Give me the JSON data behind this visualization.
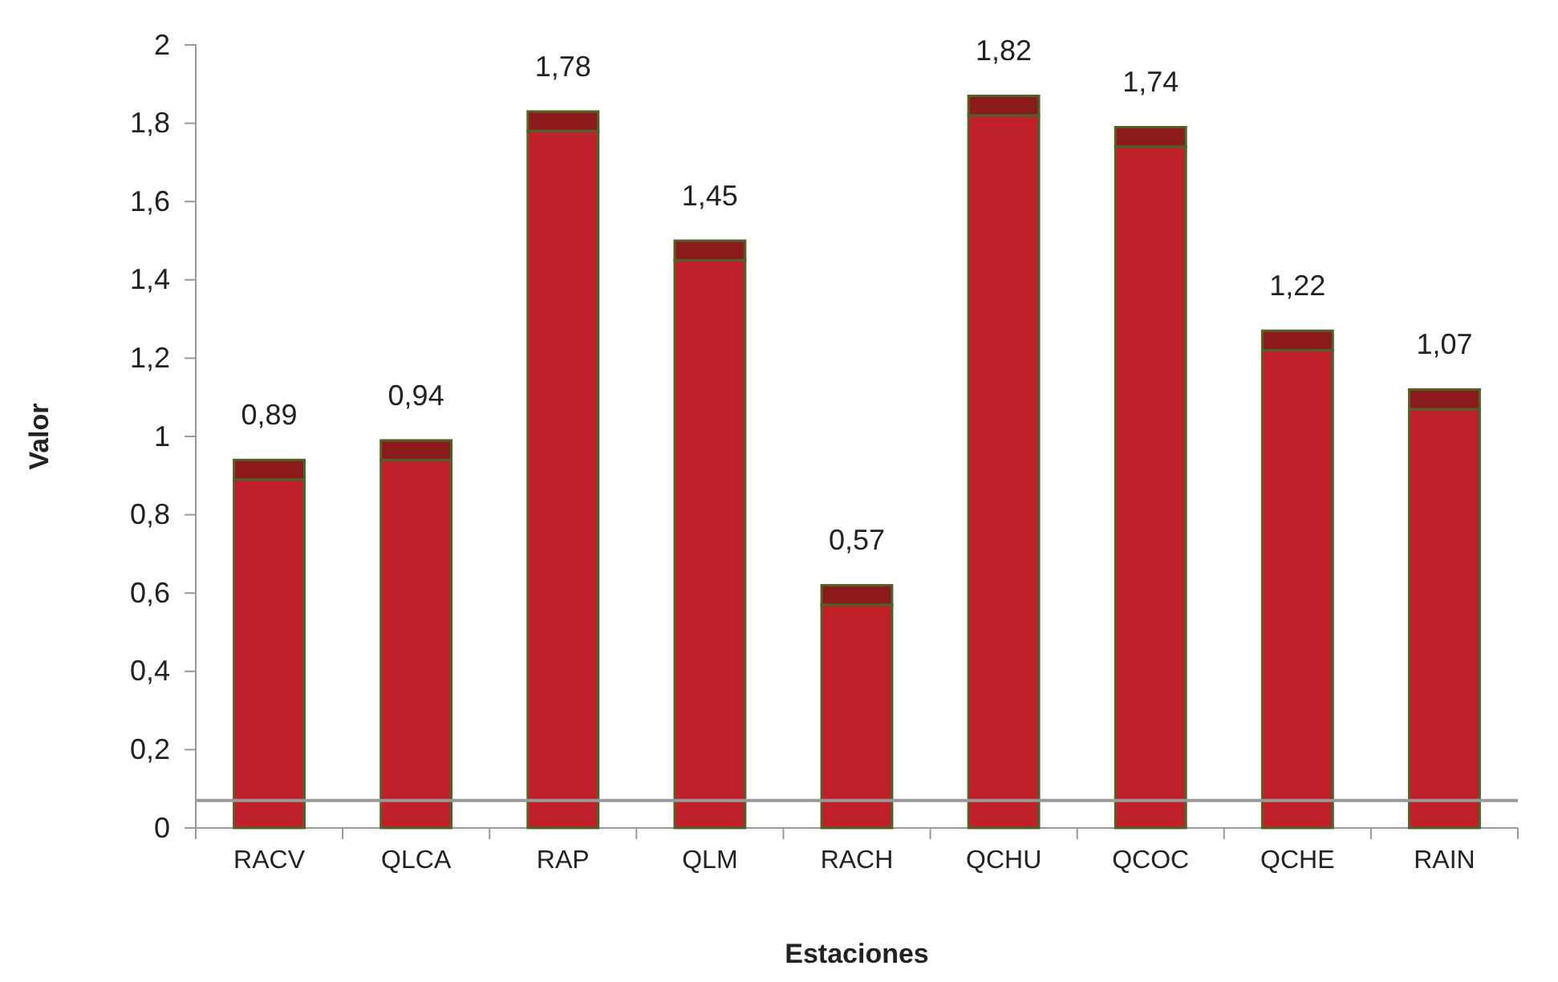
{
  "chart_data": {
    "type": "bar",
    "xlabel": "Estaciones",
    "ylabel": "Valor",
    "categories": [
      "RACV",
      "QLCA",
      "RAP",
      "QLM",
      "RACH",
      "QCHU",
      "QCOC",
      "QCHE",
      "RAIN"
    ],
    "stacked": true,
    "series": [
      {
        "color": "#c0202a",
        "values": [
          0.89,
          0.94,
          1.78,
          1.45,
          0.57,
          1.82,
          1.74,
          1.22,
          1.07
        ],
        "value_labels": [
          "0,89",
          "0,94",
          "1,78",
          "1,45",
          "0,57",
          "1,82",
          "1,74",
          "1,22",
          "1,07"
        ]
      },
      {
        "color": "#8b1a1c",
        "values": [
          0.05,
          0.05,
          0.05,
          0.05,
          0.05,
          0.05,
          0.05,
          0.05,
          0.05
        ]
      }
    ],
    "ylim": [
      0,
      2
    ],
    "yticks": [
      0,
      {
        "value": 0.2,
        "label": "0,2"
      },
      {
        "value": 0.4,
        "label": "0,4"
      },
      {
        "value": 0.6,
        "label": "0,6"
      },
      {
        "value": 0.8,
        "label": "0,8"
      },
      1,
      {
        "value": 1.2,
        "label": "1,2"
      },
      {
        "value": 1.4,
        "label": "1,4"
      },
      {
        "value": 1.6,
        "label": "1,6"
      },
      {
        "value": 1.8,
        "label": "1,8"
      },
      2
    ],
    "ref_lines": [
      {
        "axis": "y",
        "value": 0.07,
        "color": "#999999"
      }
    ],
    "grid": false
  }
}
